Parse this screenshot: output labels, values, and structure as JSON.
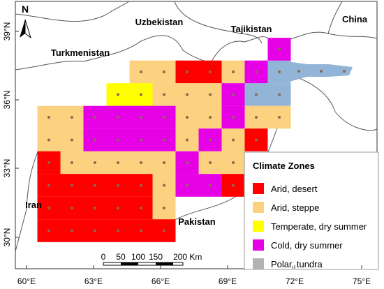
{
  "map": {
    "north": "N",
    "countries": [
      "Uzbekistan",
      "Tajikistan",
      "China",
      "Turkmenistan",
      "Iran",
      "Pakistan"
    ],
    "lat_labels": [
      "39°N",
      "36°N",
      "33°N",
      "30°N"
    ],
    "lon_labels": [
      "60°E",
      "63°E",
      "66°E",
      "69°E",
      "72°E",
      "75°E"
    ],
    "scale_labels": [
      "0",
      "50",
      "100",
      "150",
      "200 Km"
    ]
  },
  "legend": {
    "title": "Climate Zones",
    "items": [
      {
        "label": "Arid, desert",
        "color": "#ff0000"
      },
      {
        "label": "Arid, steppe",
        "color": "#fcd17f"
      },
      {
        "label": "Temperate, dry summer",
        "color": "#ffff00"
      },
      {
        "label": "Cold, dry summer",
        "color": "#e600e6"
      },
      {
        "label": "Polar, tundra",
        "color": "#b2b2b2"
      }
    ]
  }
}
